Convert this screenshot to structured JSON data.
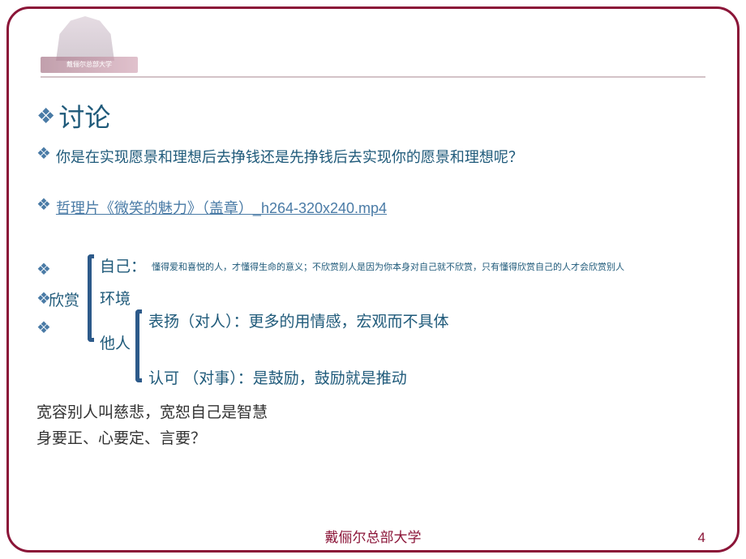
{
  "slide": {
    "border_color": "#8b1538",
    "background_color": "#ffffff",
    "logo_text": "戴俪尔总部大学",
    "title": "讨论",
    "question": "你是在实现愿景和理想后去挣钱还是先挣钱后去实现你的愿景和理想呢？",
    "link": "哲理片《微笑的魅力》（盖章）_h264-320x240.mp4",
    "appreciate": {
      "label": "欣赏",
      "self": "自己：",
      "self_desc": "懂得爱和喜悦的人，才懂得生命的意义；不欣赏别人是因为你本身对自己就不欣赏，只有懂得欣赏自己的人才会欣赏别人",
      "env": "环境",
      "others": "他人",
      "praise": "表扬（对人）：更多的用情感，宏观而不具体",
      "approve": "认可 （对事）：是鼓励，鼓励就是推动"
    },
    "bottom_line1": "宽容别人叫慈悲，宽恕自己是智慧",
    "bottom_line2": "身要正、心要定、言要？",
    "footer": "戴俪尔总部大学",
    "page_number": "4",
    "colors": {
      "accent": "#1f5a7a",
      "bullet": "#4a7ba6",
      "bracket": "#2d5a8a",
      "brand": "#8b1538"
    }
  }
}
